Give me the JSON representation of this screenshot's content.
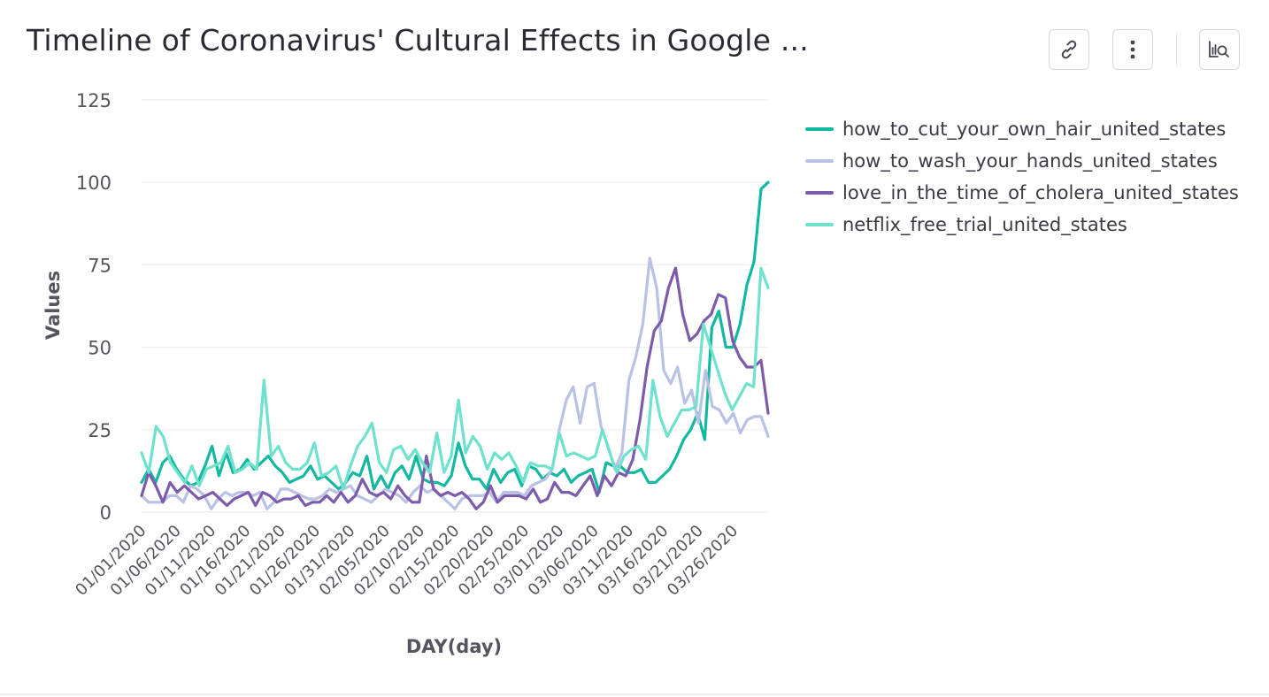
{
  "header": {
    "title": "Timeline of Coronavirus' Cultural Effects in Google ..."
  },
  "toolbar": {
    "link_icon": "link-icon",
    "more_icon": "more-vertical-icon",
    "explore_icon": "chart-explore-icon"
  },
  "chart_data": {
    "type": "line",
    "title": "",
    "xlabel": "DAY(day)",
    "ylabel": "Values",
    "ylim": [
      0,
      125
    ],
    "yticks": [
      0,
      25,
      50,
      75,
      100,
      125
    ],
    "grid": true,
    "legend_position": "right",
    "x_start": "01/01/2020",
    "x_tick_labels": [
      "01/01/2020",
      "01/06/2020",
      "01/11/2020",
      "01/16/2020",
      "01/21/2020",
      "01/26/2020",
      "01/31/2020",
      "02/05/2020",
      "02/10/2020",
      "02/15/2020",
      "02/20/2020",
      "02/25/2020",
      "03/01/2020",
      "03/06/2020",
      "03/11/2020",
      "03/16/2020",
      "03/21/2020",
      "03/26/2020"
    ],
    "series": [
      {
        "name": "how_to_cut_your_own_hair_united_states",
        "color": "#13b8a0",
        "values": [
          9,
          13,
          9,
          15,
          17,
          13,
          10,
          8,
          9,
          14,
          20,
          11,
          18,
          12,
          13,
          16,
          13,
          15,
          17,
          14,
          12,
          9,
          10,
          11,
          14,
          10,
          11,
          9,
          7,
          9,
          12,
          11,
          17,
          7,
          11,
          7,
          12,
          14,
          10,
          17,
          10,
          9,
          9,
          8,
          11,
          21,
          14,
          10,
          10,
          7,
          13,
          9,
          12,
          13,
          8,
          14,
          13,
          10,
          12,
          11,
          13,
          9,
          11,
          12,
          13,
          6,
          15,
          14,
          14,
          12,
          12,
          13,
          9,
          9,
          11,
          13,
          17,
          22,
          25,
          30,
          22,
          56,
          61,
          50,
          50,
          57,
          69,
          76,
          98,
          100
        ]
      },
      {
        "name": "how_to_wash_your_hands_united_states",
        "color": "#b9c1e4",
        "values": [
          5,
          3,
          3,
          3,
          5,
          5,
          3,
          8,
          7,
          5,
          1,
          4,
          6,
          5,
          6,
          6,
          5,
          6,
          1,
          3,
          7,
          7,
          6,
          5,
          4,
          4,
          5,
          7,
          6,
          7,
          8,
          5,
          4,
          3,
          5,
          7,
          6,
          5,
          3,
          6,
          8,
          6,
          7,
          5,
          3,
          1,
          4,
          5,
          5,
          5,
          6,
          3,
          6,
          6,
          6,
          5,
          8,
          9,
          10,
          13,
          25,
          34,
          38,
          27,
          38,
          39,
          26,
          20,
          13,
          18,
          40,
          47,
          57,
          77,
          68,
          43,
          39,
          44,
          33,
          37,
          27,
          43,
          32,
          31,
          27,
          30,
          24,
          28,
          29,
          29,
          23
        ]
      },
      {
        "name": "love_in_the_time_of_cholera_united_states",
        "color": "#7d5bac",
        "values": [
          5,
          12,
          8,
          3,
          9,
          6,
          8,
          6,
          4,
          5,
          6,
          4,
          2,
          4,
          5,
          6,
          2,
          6,
          5,
          3,
          4,
          4,
          5,
          2,
          3,
          3,
          5,
          3,
          6,
          3,
          5,
          10,
          6,
          5,
          6,
          4,
          8,
          5,
          3,
          3,
          17,
          7,
          5,
          6,
          5,
          6,
          4,
          1,
          3,
          8,
          3,
          5,
          5,
          5,
          4,
          7,
          3,
          4,
          9,
          6,
          6,
          5,
          8,
          11,
          5,
          11,
          8,
          12,
          11,
          16,
          28,
          44,
          55,
          58,
          68,
          74,
          60,
          52,
          54,
          58,
          60,
          66,
          65,
          52,
          47,
          44,
          44,
          46,
          30
        ]
      },
      {
        "name": "netflix_free_trial_united_states",
        "color": "#6ee2cc",
        "values": [
          18,
          12,
          26,
          23,
          15,
          12,
          9,
          14,
          8,
          13,
          14,
          15,
          20,
          12,
          13,
          15,
          13,
          40,
          17,
          20,
          15,
          13,
          13,
          15,
          21,
          11,
          12,
          14,
          7,
          14,
          20,
          23,
          27,
          15,
          12,
          19,
          20,
          16,
          19,
          15,
          12,
          24,
          12,
          17,
          34,
          18,
          23,
          20,
          13,
          18,
          16,
          18,
          14,
          9,
          15,
          14,
          14,
          13,
          24,
          17,
          18,
          17,
          16,
          17,
          25,
          18,
          12,
          17,
          19,
          20,
          16,
          40,
          29,
          23,
          27,
          31,
          31,
          32,
          57,
          50,
          43,
          36,
          31,
          35,
          39,
          38,
          74,
          68
        ]
      }
    ]
  }
}
